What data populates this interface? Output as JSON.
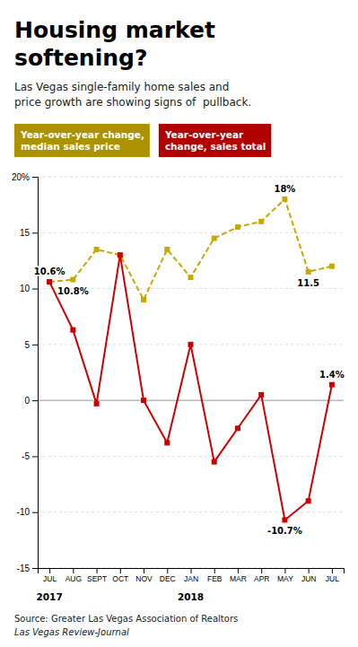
{
  "chart_data": {
    "type": "line",
    "title": "Housing market\nsoftening?",
    "subtitle": "Las Vegas single-family home sales and\nprice growth are showing signs of  pullback.",
    "categories": [
      "JUL",
      "AUG",
      "SEPT",
      "OCT",
      "NOV",
      "DEC",
      "JAN",
      "FEB",
      "MAR",
      "APR",
      "MAY",
      "JUN",
      "JUL"
    ],
    "series": [
      {
        "name": "Year-over-year change,\nmedian sales price",
        "color": "#C8A800",
        "values": [
          10.6,
          10.8,
          13.5,
          13.0,
          9.0,
          13.5,
          11.0,
          14.5,
          15.5,
          16.0,
          18.0,
          11.5,
          12.0
        ],
        "value_labels": [
          null,
          "10.8%",
          null,
          null,
          null,
          null,
          null,
          null,
          null,
          null,
          "18%",
          "11.5",
          null
        ],
        "marker": "square",
        "line_style": "dashed"
      },
      {
        "name": "Year-over-year\nchange, sales total",
        "color": "#CC0000",
        "values": [
          10.6,
          6.3,
          -0.3,
          13.0,
          0.0,
          -3.8,
          5.0,
          -5.5,
          -2.5,
          0.5,
          -10.7,
          -9.0,
          1.4
        ],
        "value_labels": [
          "10.6%",
          null,
          null,
          null,
          null,
          null,
          null,
          null,
          null,
          null,
          "-10.7%",
          null,
          "1.4%"
        ],
        "marker": "square",
        "line_style": "solid"
      }
    ],
    "ylim": [
      -15,
      20
    ],
    "yticks": [
      -15,
      -10,
      -5,
      0,
      5,
      10,
      15,
      {
        "value": 20,
        "label": "20%"
      }
    ],
    "grid": true,
    "legend": "upper left",
    "annotations": [
      {
        "text": "2017",
        "x": "JUL"
      },
      {
        "text": "2018",
        "x": "JAN"
      }
    ],
    "source": [
      "Source: Greater Las Vegas Association of Realtors",
      "Las Vegas Review-Journal"
    ]
  }
}
